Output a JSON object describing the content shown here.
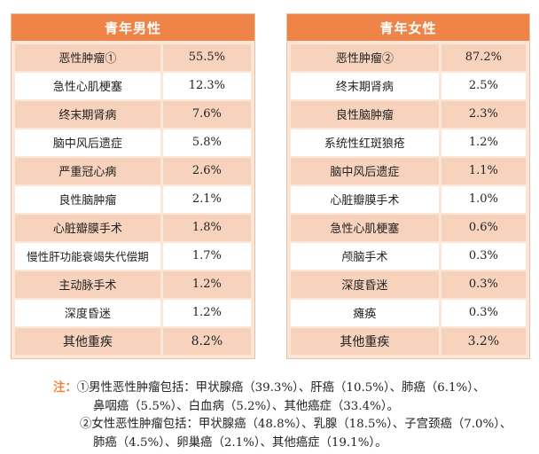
{
  "male": {
    "title": "青年男性",
    "rows": [
      {
        "name": "恶性肿瘤①",
        "value": "55.5%"
      },
      {
        "name": "急性心肌梗塞",
        "value": "12.3%"
      },
      {
        "name": "终末期肾病",
        "value": "7.6%"
      },
      {
        "name": "脑中风后遗症",
        "value": "5.8%"
      },
      {
        "name": "严重冠心病",
        "value": "2.6%"
      },
      {
        "name": "良性脑肿瘤",
        "value": "2.1%"
      },
      {
        "name": "心脏瓣膜手术",
        "value": "1.8%"
      },
      {
        "name": "慢性肝功能衰竭失代偿期",
        "value": "1.7%"
      },
      {
        "name": "主动脉手术",
        "value": "1.2%"
      },
      {
        "name": "深度昏迷",
        "value": "1.2%"
      },
      {
        "name": "其他重疾",
        "value": "8.2%"
      }
    ]
  },
  "female": {
    "title": "青年女性",
    "rows": [
      {
        "name": "恶性肿瘤②",
        "value": "87.2%"
      },
      {
        "name": "终末期肾病",
        "value": "2.5%"
      },
      {
        "name": "良性脑肿瘤",
        "value": "2.3%"
      },
      {
        "name": "系统性红斑狼疮",
        "value": "1.2%"
      },
      {
        "name": "脑中风后遗症",
        "value": "1.1%"
      },
      {
        "name": "心脏瓣膜手术",
        "value": "1.0%"
      },
      {
        "name": "急性心肌梗塞",
        "value": "0.6%"
      },
      {
        "name": "颅脑手术",
        "value": "0.3%"
      },
      {
        "name": "深度昏迷",
        "value": "0.3%"
      },
      {
        "name": "瘫痪",
        "value": "0.3%"
      },
      {
        "name": "其他重疾",
        "value": "3.2%"
      }
    ]
  },
  "notes": {
    "label": "注：",
    "line1": "①男性恶性肿瘤包括：甲状腺癌（39.3%）、肝癌（10.5%）、肺癌（6.1%）、",
    "line2": "鼻咽癌（5.5%）、白血病（5.2%）、其他癌症（33.4%）。",
    "line3": "②女性恶性肿瘤包括：甲状腺癌（48.8%）、乳腺（18.5%）、子宫颈癌（7.0%）、",
    "line4": "肺癌（4.5%）、卵巢癌（2.1%）、其他癌症（19.1%）。"
  }
}
